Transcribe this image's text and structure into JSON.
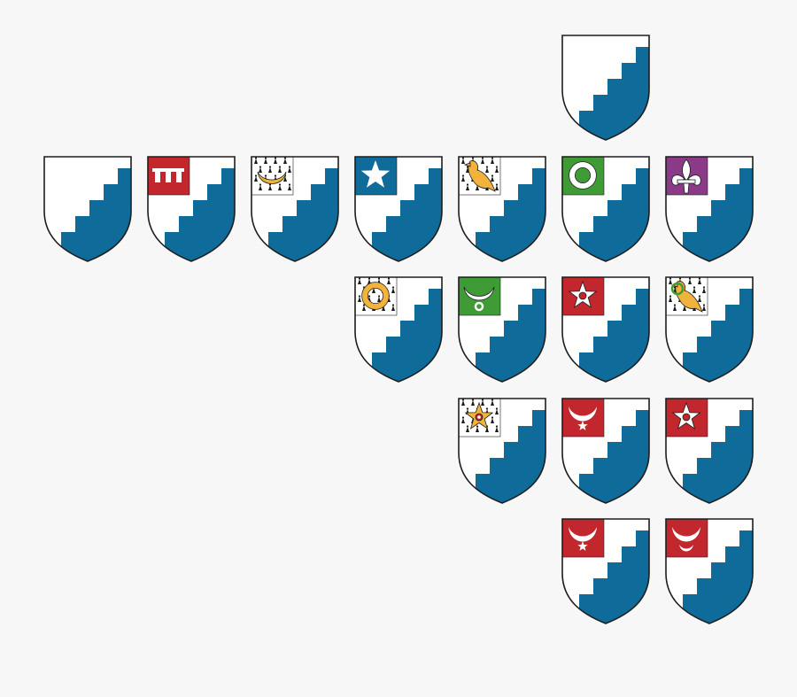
{
  "colors": {
    "background": "#f7f7f7",
    "field": "#ffffff",
    "dancetty": "#0f6b99",
    "outline": "#1d1d1d",
    "gules": "#c1272d",
    "vert": "#3f9b35",
    "purpure": "#8b3a87",
    "azure": "#0f6b99",
    "or": "#f2b33d",
    "argent": "#ffffff",
    "ermine": "#ffffff"
  },
  "shields": [
    {
      "row": 0,
      "col": 5,
      "charge": null
    },
    {
      "row": 1,
      "col": 0,
      "charge": null
    },
    {
      "row": 1,
      "col": 1,
      "charge": {
        "field": "gules",
        "icon": "label-icon"
      }
    },
    {
      "row": 1,
      "col": 2,
      "charge": {
        "field": "ermine",
        "icon": "crescent-icon",
        "tincture": "or"
      }
    },
    {
      "row": 1,
      "col": 3,
      "charge": {
        "field": "azure",
        "icon": "star-icon",
        "tincture": "argent"
      }
    },
    {
      "row": 1,
      "col": 4,
      "charge": {
        "field": "ermine",
        "icon": "bird-icon",
        "tincture": "or"
      }
    },
    {
      "row": 1,
      "col": 5,
      "charge": {
        "field": "vert",
        "icon": "annulet-icon",
        "tincture": "argent"
      }
    },
    {
      "row": 1,
      "col": 6,
      "charge": {
        "field": "purpure",
        "icon": "fleur-de-lis-icon",
        "tincture": "argent"
      }
    },
    {
      "row": 2,
      "col": 3,
      "charge": {
        "field": "ermine",
        "icon": "annulet-icon",
        "tincture": "or"
      }
    },
    {
      "row": 2,
      "col": 4,
      "charge": {
        "field": "vert",
        "icon": "crescent-annulet-icon",
        "tincture": "argent"
      }
    },
    {
      "row": 2,
      "col": 5,
      "charge": {
        "field": "gules",
        "icon": "star-pierced-icon",
        "tincture": "argent"
      }
    },
    {
      "row": 2,
      "col": 6,
      "charge": {
        "field": "ermine",
        "icon": "bird-annulet-icon",
        "tincture": "or"
      }
    },
    {
      "row": 3,
      "col": 4,
      "charge": {
        "field": "ermine",
        "icon": "star-pierced-icon",
        "tincture": "or"
      }
    },
    {
      "row": 3,
      "col": 5,
      "charge": {
        "field": "gules",
        "icon": "crescent-star-icon",
        "tincture": "argent"
      }
    },
    {
      "row": 3,
      "col": 6,
      "charge": {
        "field": "gules",
        "icon": "star-pierced-icon",
        "tincture": "argent"
      }
    },
    {
      "row": 4,
      "col": 5,
      "charge": {
        "field": "gules",
        "icon": "crescent-star-icon",
        "tincture": "argent"
      }
    },
    {
      "row": 4,
      "col": 6,
      "charge": {
        "field": "gules",
        "icon": "crescent-crescent-icon",
        "tincture": "argent"
      }
    }
  ]
}
